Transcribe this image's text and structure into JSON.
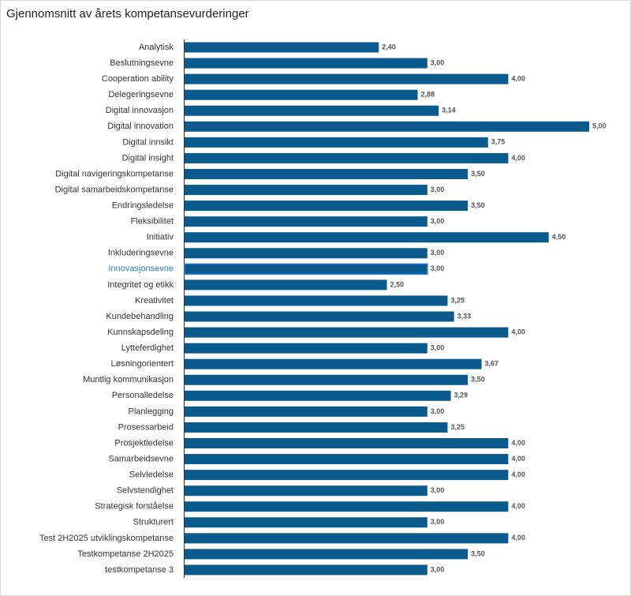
{
  "chart_data": {
    "type": "hbar",
    "title": "Gjennomsnitt av årets kompetansevurderinger",
    "categories": [
      "Analytisk",
      "Beslutningsevne",
      "Cooperation ability",
      "Delegeringsevne",
      "Digital innovasjon",
      "Digital innovation",
      "Digital innsikt",
      "Digital insight",
      "Digital navigeringskompetanse",
      "Digital samarbeidskompetanse",
      "Endringsledelse",
      "Fleksibilitet",
      "Initiativ",
      "Inkluderingsevne",
      "Innovasjonsevne",
      "Integritet og etikk",
      "Kreativitet",
      "Kundebehandling",
      "Kunnskapsdeling",
      "Lytteferdighet",
      "Løsningorientert",
      "Muntlig kommunikasjon",
      "Personalledelse",
      "Planlegging",
      "Prosessarbeid",
      "Prosjektledelse",
      "Samarbeidsevne",
      "Selvledelse",
      "Selvstendighet",
      "Strategisk forståelse",
      "Strukturert",
      "Test 2H2025 utviklingskompetanse",
      "Testkompetanse 2H2025",
      "testkompetanse 3"
    ],
    "values": [
      2.4,
      3.0,
      4.0,
      2.88,
      3.14,
      5.0,
      3.75,
      4.0,
      3.5,
      3.0,
      3.5,
      3.0,
      4.5,
      3.0,
      3.0,
      2.5,
      3.25,
      3.33,
      4.0,
      3.0,
      3.67,
      3.5,
      3.29,
      3.0,
      3.25,
      4.0,
      4.0,
      4.0,
      3.0,
      4.0,
      3.0,
      4.0,
      3.5,
      3.0
    ],
    "value_labels": [
      "2,40",
      "3,00",
      "4,00",
      "2,88",
      "3,14",
      "5,00",
      "3,75",
      "4,00",
      "3,50",
      "3,00",
      "3,50",
      "3,00",
      "4,50",
      "3,00",
      "3,00",
      "2,50",
      "3,25",
      "3,33",
      "4,00",
      "3,00",
      "3,67",
      "3,50",
      "3,29",
      "3,00",
      "3,25",
      "4,00",
      "4,00",
      "4,00",
      "3,00",
      "4,00",
      "3,00",
      "4,00",
      "3,50",
      "3,00"
    ],
    "color": "#0b5a8e",
    "highlight_color": "#2a7fd4",
    "highlight_index": 14
  }
}
